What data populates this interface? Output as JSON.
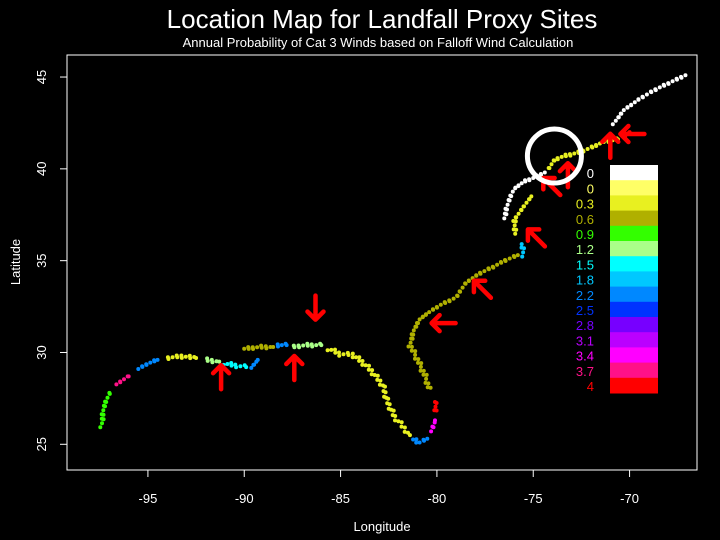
{
  "chart_data": {
    "type": "scatter",
    "title": "Location Map for Landfall Proxy Sites",
    "subtitle": "Annual Probability of Cat 3 Winds based on Falloff Wind Calculation",
    "xlabel": "Longitude",
    "ylabel": "Latitude",
    "xlim": [
      -99.2,
      -66.5
    ],
    "ylim": [
      23.6,
      46.2
    ],
    "x_ticks": [
      -95,
      -90,
      -85,
      -80,
      -75,
      -70
    ],
    "y_ticks": [
      25,
      30,
      35,
      40,
      45
    ],
    "grid": false,
    "legend": {
      "placement": "right",
      "entries": [
        {
          "label": "0",
          "color": "#ffffff"
        },
        {
          "label": "0",
          "color": "#ffff66"
        },
        {
          "label": "0.3",
          "color": "#e8f020"
        },
        {
          "label": "0.6",
          "color": "#b0b000"
        },
        {
          "label": "0.9",
          "color": "#33ff00"
        },
        {
          "label": "1.2",
          "color": "#aaff88"
        },
        {
          "label": "1.5",
          "color": "#00ffff"
        },
        {
          "label": "1.8",
          "color": "#00c8ff"
        },
        {
          "label": "2.2",
          "color": "#0088ff"
        },
        {
          "label": "2.5",
          "color": "#0033ff"
        },
        {
          "label": "2.8",
          "color": "#7700ff"
        },
        {
          "label": "3.1",
          "color": "#bb00ff"
        },
        {
          "label": "3.4",
          "color": "#ff00ff"
        },
        {
          "label": "3.7",
          "color": "#ff1188"
        },
        {
          "label": "4",
          "color": "#ff0000"
        }
      ]
    },
    "coast_segments": [
      {
        "class": 4,
        "points": [
          [
            -97.4,
            26.0
          ],
          [
            -97.3,
            27.0
          ],
          [
            -97.0,
            27.8
          ]
        ]
      },
      {
        "class": 13,
        "points": [
          [
            -96.6,
            28.3
          ],
          [
            -96.0,
            28.7
          ]
        ]
      },
      {
        "class": 8,
        "points": [
          [
            -95.5,
            29.1
          ],
          [
            -95.0,
            29.4
          ],
          [
            -94.5,
            29.6
          ]
        ]
      },
      {
        "class": 2,
        "points": [
          [
            -94.0,
            29.7
          ],
          [
            -93.3,
            29.8
          ],
          [
            -92.5,
            29.7
          ]
        ]
      },
      {
        "class": 5,
        "points": [
          [
            -92.0,
            29.6
          ],
          [
            -91.3,
            29.5
          ]
        ]
      },
      {
        "class": 6,
        "points": [
          [
            -91.0,
            29.4
          ],
          [
            -90.5,
            29.3
          ],
          [
            -89.9,
            29.2
          ]
        ]
      },
      {
        "class": 8,
        "points": [
          [
            -89.6,
            29.2
          ],
          [
            -89.3,
            29.6
          ]
        ]
      },
      {
        "class": 3,
        "points": [
          [
            -90.0,
            30.2
          ],
          [
            -89.2,
            30.3
          ],
          [
            -88.5,
            30.3
          ]
        ]
      },
      {
        "class": 8,
        "points": [
          [
            -88.3,
            30.4
          ],
          [
            -87.8,
            30.4
          ]
        ]
      },
      {
        "class": 5,
        "points": [
          [
            -87.5,
            30.3
          ],
          [
            -86.8,
            30.4
          ],
          [
            -86.0,
            30.4
          ]
        ]
      },
      {
        "class": 2,
        "points": [
          [
            -85.6,
            30.2
          ],
          [
            -85.0,
            29.9
          ],
          [
            -84.4,
            29.9
          ],
          [
            -83.9,
            29.5
          ],
          [
            -83.4,
            29.0
          ],
          [
            -82.8,
            28.2
          ],
          [
            -82.6,
            27.4
          ],
          [
            -82.2,
            26.5
          ],
          [
            -81.8,
            26.0
          ],
          [
            -81.4,
            25.5
          ]
        ]
      },
      {
        "class": 8,
        "points": [
          [
            -81.2,
            25.3
          ],
          [
            -80.9,
            25.1
          ],
          [
            -80.5,
            25.3
          ]
        ]
      },
      {
        "class": 12,
        "points": [
          [
            -80.3,
            25.7
          ],
          [
            -80.1,
            26.3
          ]
        ]
      },
      {
        "class": 14,
        "points": [
          [
            -80.05,
            26.8
          ],
          [
            -80.1,
            27.3
          ]
        ]
      },
      {
        "class": 3,
        "points": [
          [
            -80.4,
            28.0
          ],
          [
            -80.6,
            28.7
          ],
          [
            -81.0,
            29.6
          ],
          [
            -81.4,
            30.4
          ],
          [
            -81.2,
            31.2
          ],
          [
            -80.9,
            31.8
          ],
          [
            -80.4,
            32.2
          ],
          [
            -79.8,
            32.6
          ],
          [
            -79.0,
            33.0
          ],
          [
            -78.5,
            33.8
          ],
          [
            -77.8,
            34.3
          ],
          [
            -77.0,
            34.7
          ],
          [
            -76.5,
            35.0
          ],
          [
            -75.8,
            35.3
          ]
        ]
      },
      {
        "class": 7,
        "points": [
          [
            -75.5,
            35.3
          ],
          [
            -75.6,
            35.9
          ]
        ]
      },
      {
        "class": 2,
        "points": [
          [
            -75.9,
            36.5
          ],
          [
            -76.0,
            37.2
          ],
          [
            -75.6,
            37.8
          ],
          [
            -75.1,
            38.5
          ]
        ]
      },
      {
        "class": 0,
        "points": [
          [
            -76.5,
            37.3
          ],
          [
            -76.3,
            38.2
          ],
          [
            -76.0,
            38.9
          ],
          [
            -75.5,
            39.3
          ],
          [
            -75.0,
            39.5
          ],
          [
            -74.4,
            39.8
          ]
        ]
      },
      {
        "class": 2,
        "points": [
          [
            -74.2,
            40.0
          ],
          [
            -73.9,
            40.5
          ],
          [
            -73.4,
            40.7
          ],
          [
            -72.6,
            40.9
          ],
          [
            -71.9,
            41.2
          ],
          [
            -71.3,
            41.5
          ],
          [
            -70.6,
            41.6
          ]
        ]
      },
      {
        "class": 14,
        "points": [
          [
            -70.3,
            41.7
          ],
          [
            -70.0,
            42.0
          ]
        ]
      },
      {
        "class": 0,
        "points": [
          [
            -70.8,
            42.5
          ],
          [
            -70.3,
            43.2
          ],
          [
            -69.5,
            43.8
          ],
          [
            -68.7,
            44.3
          ],
          [
            -67.9,
            44.7
          ],
          [
            -67.1,
            45.1
          ]
        ]
      }
    ],
    "arrows": [
      {
        "x": -91.2,
        "y": 28.6,
        "dir": "up"
      },
      {
        "x": -87.4,
        "y": 29.1,
        "dir": "up"
      },
      {
        "x": -86.3,
        "y": 32.5,
        "dir": "down"
      },
      {
        "x": -79.6,
        "y": 31.6,
        "dir": "left"
      },
      {
        "x": -77.6,
        "y": 33.4,
        "dir": "upleft"
      },
      {
        "x": -74.8,
        "y": 36.2,
        "dir": "upleft"
      },
      {
        "x": -74.0,
        "y": 39.0,
        "dir": "upleft"
      },
      {
        "x": -73.2,
        "y": 39.6,
        "dir": "up"
      },
      {
        "x": -71.0,
        "y": 41.2,
        "dir": "up"
      },
      {
        "x": -69.8,
        "y": 41.9,
        "dir": "left"
      }
    ],
    "highlight_circle": {
      "x": -73.9,
      "y": 40.7,
      "radius_deg": 1.4
    }
  }
}
